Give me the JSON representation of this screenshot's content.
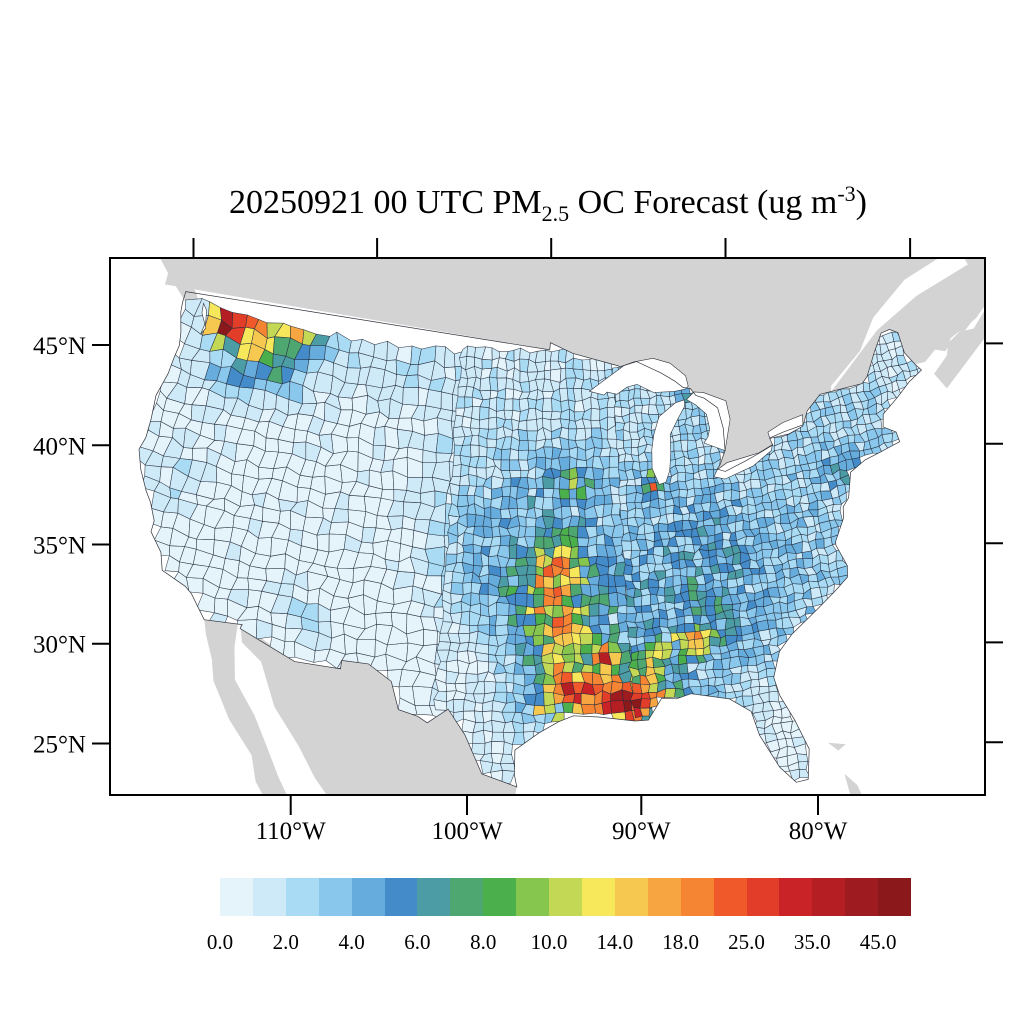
{
  "figure": {
    "title": {
      "prefix": "20250921 00 UTC PM",
      "subscript": "2.5",
      "middle": " OC Forecast (ug m",
      "superscript": "-3",
      "suffix": ")"
    }
  },
  "axes": {
    "lat_labels": [
      "45°N",
      "40°N",
      "35°N",
      "30°N",
      "25°N"
    ],
    "lat_values": [
      45,
      40,
      35,
      30,
      25
    ],
    "lon_labels": [
      "110°W",
      "100°W",
      "90°W",
      "80°W"
    ],
    "lon_values": [
      -110,
      -100,
      -90,
      -80
    ],
    "top_tick_meridians": [
      -125,
      -110,
      -95,
      -80,
      -65
    ],
    "right_tick_parallels": [
      45,
      40,
      35,
      30,
      25
    ]
  },
  "colorbar": {
    "tick_labels": [
      "0.0",
      "2.0",
      "4.0",
      "6.0",
      "8.0",
      "10.0",
      "14.0",
      "18.0",
      "25.0",
      "35.0",
      "45.0"
    ],
    "thresholds": [
      0,
      1,
      2,
      3,
      4,
      5,
      6,
      7,
      8,
      9,
      10,
      12,
      14,
      16,
      18,
      21.5,
      25,
      30,
      35,
      40,
      45
    ],
    "colors": [
      "#E5F3FB",
      "#CEEAF8",
      "#A9DCF4",
      "#89C7EC",
      "#66ADDE",
      "#438BC9",
      "#4B9CA4",
      "#4EA671",
      "#4BB04C",
      "#86C54E",
      "#C3D955",
      "#F7E75A",
      "#F7C84F",
      "#F6A541",
      "#F58433",
      "#F05A2B",
      "#E23D28",
      "#C92327",
      "#B51F24",
      "#9E1B20",
      "#8B191B"
    ]
  },
  "map": {
    "land_color": "#d3d3d3",
    "water_color": "#ffffff",
    "county_line_color": "#232b3a",
    "field": {
      "base_min": 0.55,
      "base_max": 2.3,
      "blobs": [
        {
          "la": 48.1,
          "lo": -120.6,
          "a": 55,
          "sa": 0.55,
          "so": 0.8
        },
        {
          "la": 48.55,
          "lo": -116.5,
          "a": 12,
          "sa": 0.8,
          "so": 2.3
        },
        {
          "la": 47.3,
          "lo": -117.9,
          "a": 5,
          "sa": 0.9,
          "so": 1.6
        },
        {
          "la": 46.4,
          "lo": -117.2,
          "a": 3.2,
          "sa": 1.1,
          "so": 2.4
        },
        {
          "la": 45.8,
          "lo": -120.0,
          "a": 1.8,
          "sa": 0.9,
          "so": 2.0
        },
        {
          "la": 39.9,
          "lo": -121.2,
          "a": 1.0,
          "sa": 1.5,
          "so": 1.3
        },
        {
          "la": 33.7,
          "lo": -111.4,
          "a": 1.5,
          "sa": 0.8,
          "so": 1.0
        },
        {
          "la": 47.3,
          "lo": -106.0,
          "a": 0.9,
          "sa": 2.0,
          "so": 4.0
        },
        {
          "la": 40.2,
          "lo": -96.5,
          "a": 2.6,
          "sa": 3.2,
          "so": 4.2
        },
        {
          "la": 36.6,
          "lo": -98.6,
          "a": 1.8,
          "sa": 1.6,
          "so": 2.6
        },
        {
          "la": 34.0,
          "lo": -94.0,
          "a": 7,
          "sa": 2.5,
          "so": 2.4
        },
        {
          "la": 35.9,
          "lo": -94.8,
          "a": 8,
          "sa": 1.6,
          "so": 1.0
        },
        {
          "la": 37.6,
          "lo": -95.1,
          "a": 5,
          "sa": 0.9,
          "so": 0.9
        },
        {
          "la": 30.4,
          "lo": -91.8,
          "a": 22,
          "sa": 0.85,
          "so": 2.1
        },
        {
          "la": 30.1,
          "lo": -90.3,
          "a": 26,
          "sa": 0.4,
          "so": 0.45
        },
        {
          "la": 29.9,
          "lo": -88.6,
          "a": 18,
          "sa": 0.35,
          "so": 0.4
        },
        {
          "la": 31.4,
          "lo": -94.3,
          "a": 13,
          "sa": 0.6,
          "so": 0.6
        },
        {
          "la": 32.6,
          "lo": -91.7,
          "a": 20,
          "sa": 0.35,
          "so": 0.4
        },
        {
          "la": 33.0,
          "lo": -85.9,
          "a": 12,
          "sa": 0.5,
          "so": 0.65
        },
        {
          "la": 32.3,
          "lo": -88.4,
          "a": 9,
          "sa": 0.6,
          "so": 0.7
        },
        {
          "la": 41.7,
          "lo": -87.9,
          "a": 6.5,
          "sa": 0.5,
          "so": 0.45
        },
        {
          "la": 42.0,
          "lo": -93.4,
          "a": 4.5,
          "sa": 0.55,
          "so": 0.9
        },
        {
          "la": 46.4,
          "lo": -84.6,
          "a": 6,
          "sa": 0.35,
          "so": 0.5
        },
        {
          "la": 38.3,
          "lo": -85.0,
          "a": 1.8,
          "sa": 2.5,
          "so": 3.5
        },
        {
          "la": 40.9,
          "lo": -74.3,
          "a": 2.0,
          "sa": 0.9,
          "so": 1.1
        },
        {
          "la": 33.8,
          "lo": -85.5,
          "a": 2.2,
          "sa": 2.5,
          "so": 3.0
        },
        {
          "la": 27.3,
          "lo": -81.4,
          "a": -1.6,
          "sa": 2.6,
          "so": 2.2
        },
        {
          "la": 45.9,
          "lo": -69.3,
          "a": -1.2,
          "sa": 1.6,
          "so": 1.9
        }
      ]
    }
  },
  "chart_data": {
    "type": "choropleth-map",
    "title": "20250921 00 UTC PM2.5 OC Forecast (ug m-3)",
    "variable": "PM2.5 organic carbon forecast",
    "units": "ug m-3",
    "region": "Contiguous United States, county-level",
    "scale_breaks": [
      0,
      1,
      2,
      3,
      4,
      5,
      6,
      7,
      8,
      9,
      10,
      12,
      14,
      16,
      18,
      21.5,
      25,
      30,
      35,
      40,
      45
    ],
    "colorbar_labels": [
      "0.0",
      "2.0",
      "4.0",
      "6.0",
      "8.0",
      "10.0",
      "14.0",
      "18.0",
      "25.0",
      "35.0",
      "45.0"
    ],
    "lat_ticks": [
      "45°N",
      "40°N",
      "35°N",
      "30°N",
      "25°N"
    ],
    "lon_ticks": [
      "110°W",
      "100°W",
      "90°W",
      "80°W"
    ],
    "hotspots": [
      {
        "region": "north-central Washington / northern Idaho / NW Montana",
        "peak_value": ">45"
      },
      {
        "region": "Gulf coast Louisiana - Mississippi - Alabama (~30N, 94W-88W)",
        "peak_value": ">45"
      },
      {
        "region": "Ozark arc: east Oklahoma / Arkansas / SE Kansas / SW Missouri",
        "peak_value": "10-18"
      },
      {
        "region": "west Georgia / east Alabama (~33N, 86W)",
        "peak_value": "18-25"
      },
      {
        "region": "NE Louisiana isolated counties (~32.6N, 91.7W)",
        "peak_value": "30-35"
      },
      {
        "region": "broad Great Plains band Kansas-Nebraska-Iowa",
        "peak_value": "3-6"
      },
      {
        "region": "western Great Basin / Rockies background",
        "peak_value": "0-1"
      },
      {
        "region": "eastern US background",
        "peak_value": "1-4"
      }
    ]
  }
}
